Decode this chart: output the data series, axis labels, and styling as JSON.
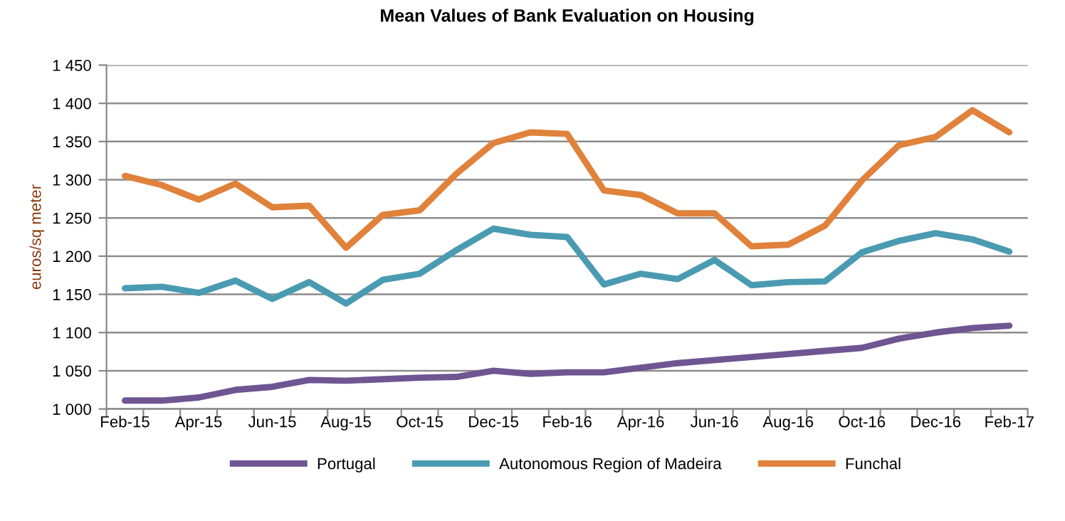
{
  "chart_data": {
    "type": "line",
    "title": "Mean Values of Bank Evaluation on Housing",
    "ylabel": "euros/sq meter",
    "categories": [
      "Feb-15",
      null,
      "Apr-15",
      null,
      "Jun-15",
      null,
      "Aug-15",
      null,
      "Oct-15",
      null,
      "Dec-15",
      null,
      "Feb-16",
      null,
      "Apr-16",
      null,
      "Jun-16",
      null,
      "Aug-16",
      null,
      "Oct-16",
      null,
      "Dec-16",
      null,
      "Feb-17"
    ],
    "series": [
      {
        "name": "Portugal",
        "color": "#6f5592",
        "values": [
          1011,
          1011,
          1015,
          1025,
          1029,
          1038,
          1037,
          1039,
          1041,
          1042,
          1050,
          1046,
          1048,
          1048,
          1054,
          1060,
          1064,
          1068,
          1072,
          1076,
          1080,
          1092,
          1100,
          1106,
          1109
        ]
      },
      {
        "name": "Autonomous Region of Madeira",
        "color": "#4a9bb1",
        "values": [
          1158,
          1160,
          1152,
          1168,
          1144,
          1166,
          1138,
          1169,
          1177,
          1208,
          1236,
          1228,
          1225,
          1163,
          1177,
          1170,
          1195,
          1162,
          1166,
          1167,
          1205,
          1220,
          1230,
          1222,
          1206
        ]
      },
      {
        "name": "Funchal",
        "color": "#e0823b",
        "values": [
          1305,
          1293,
          1274,
          1295,
          1264,
          1266,
          1211,
          1254,
          1260,
          1308,
          1348,
          1362,
          1360,
          1286,
          1280,
          1256,
          1256,
          1213,
          1215,
          1240,
          1299,
          1345,
          1356,
          1391,
          1362
        ]
      }
    ],
    "ylim": [
      1000,
      1450
    ],
    "yticks": [
      {
        "value": 1000,
        "label": "1 000"
      },
      {
        "value": 1050,
        "label": "1 050"
      },
      {
        "value": 1100,
        "label": "1 100"
      },
      {
        "value": 1150,
        "label": "1 150"
      },
      {
        "value": 1200,
        "label": "1 200"
      },
      {
        "value": 1250,
        "label": "1 250"
      },
      {
        "value": 1300,
        "label": "1 300"
      },
      {
        "value": 1350,
        "label": "1 350"
      },
      {
        "value": 1400,
        "label": "1 400"
      },
      {
        "value": 1450,
        "label": "1 450"
      }
    ],
    "grid": "y",
    "legend": "bottom",
    "marker": "none",
    "line_style": "solid"
  }
}
